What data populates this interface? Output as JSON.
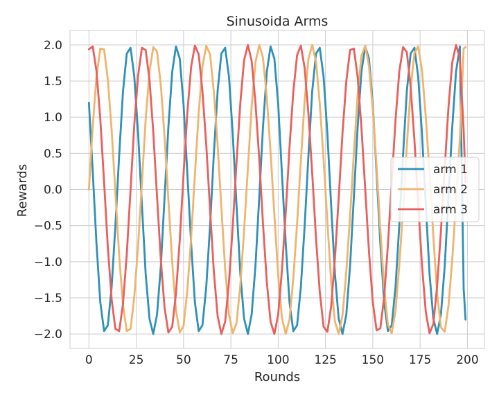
{
  "chart_data": {
    "type": "line",
    "title": "Sinusoida Arms",
    "xlabel": "Rounds",
    "ylabel": "Rewards",
    "xlim": [
      -10,
      209
    ],
    "ylim": [
      -2.2,
      2.2
    ],
    "xticks": [
      0,
      25,
      50,
      75,
      100,
      125,
      150,
      175,
      200
    ],
    "xtick_labels": [
      "0",
      "25",
      "50",
      "75",
      "100",
      "125",
      "150",
      "175",
      "200"
    ],
    "yticks": [
      -2.0,
      -1.5,
      -1.0,
      -0.5,
      0.0,
      0.5,
      1.0,
      1.5,
      2.0
    ],
    "ytick_labels": [
      "−2.0",
      "−1.5",
      "−1.0",
      "−0.5",
      "0.0",
      "0.5",
      "1.0",
      "1.5",
      "2.0"
    ],
    "grid": true,
    "legend_position": "center-right",
    "colors": {
      "background": "#ffffff",
      "grid": "#cccccc",
      "axes_edge": "#cccccc"
    },
    "x": [
      0,
      2,
      4,
      6,
      8,
      10,
      12,
      14,
      16,
      18,
      20,
      22,
      24,
      26,
      28,
      30,
      32,
      34,
      36,
      38,
      40,
      42,
      44,
      46,
      48,
      50,
      52,
      54,
      56,
      58,
      60,
      62,
      64,
      66,
      68,
      70,
      72,
      74,
      76,
      78,
      80,
      82,
      84,
      86,
      88,
      90,
      92,
      94,
      96,
      98,
      100,
      102,
      104,
      106,
      108,
      110,
      112,
      114,
      116,
      118,
      120,
      122,
      124,
      126,
      128,
      130,
      132,
      134,
      136,
      138,
      140,
      142,
      144,
      146,
      148,
      150,
      152,
      154,
      156,
      158,
      160,
      162,
      164,
      166,
      168,
      170,
      172,
      174,
      176,
      178,
      180,
      182,
      184,
      186,
      188,
      190,
      192,
      194,
      196,
      198,
      199
    ],
    "series": [
      {
        "name": "arm 1",
        "color": "#2e91b5",
        "values": [
          1.2,
          0.25,
          -0.75,
          -1.56,
          -1.96,
          -1.88,
          -1.35,
          -0.5,
          0.48,
          1.36,
          1.88,
          1.96,
          1.56,
          0.77,
          -0.22,
          -1.17,
          -1.79,
          -2.0,
          -1.73,
          -1.06,
          -0.1,
          0.87,
          1.63,
          1.98,
          1.81,
          1.18,
          0.22,
          -0.75,
          -1.56,
          -1.96,
          -1.88,
          -1.35,
          -0.5,
          0.48,
          1.36,
          1.88,
          1.96,
          1.56,
          0.77,
          -0.22,
          -1.17,
          -1.79,
          -2.0,
          -1.73,
          -1.06,
          -0.1,
          0.87,
          1.63,
          1.98,
          1.81,
          1.18,
          0.22,
          -0.75,
          -1.56,
          -1.96,
          -1.88,
          -1.35,
          -0.5,
          0.48,
          1.36,
          1.88,
          1.96,
          1.56,
          0.77,
          -0.22,
          -1.17,
          -1.79,
          -2.0,
          -1.73,
          -1.06,
          -0.1,
          0.87,
          1.63,
          1.98,
          1.81,
          1.18,
          0.22,
          -0.75,
          -1.56,
          -1.96,
          -1.88,
          -1.35,
          -0.5,
          0.48,
          1.36,
          1.88,
          1.96,
          1.56,
          0.77,
          -0.22,
          -1.17,
          -1.79,
          -2.0,
          -1.73,
          -1.06,
          -0.1,
          0.87,
          1.63,
          1.98,
          -1.37,
          -1.8
        ]
      },
      {
        "name": "arm 2",
        "color": "#f0b46e",
        "values": [
          0.0,
          0.87,
          1.56,
          1.95,
          1.94,
          1.52,
          0.82,
          -0.05,
          -0.92,
          -1.6,
          -1.96,
          -1.93,
          -1.48,
          -0.77,
          0.1,
          0.97,
          1.63,
          1.97,
          1.91,
          1.44,
          0.72,
          -0.15,
          -1.01,
          -1.67,
          -1.98,
          -1.89,
          -1.4,
          -0.67,
          0.2,
          1.06,
          1.7,
          1.99,
          1.87,
          1.36,
          0.62,
          -0.25,
          -1.1,
          -1.73,
          -1.99,
          -1.85,
          -1.32,
          -0.57,
          0.3,
          1.15,
          1.76,
          2.0,
          1.82,
          1.27,
          0.52,
          -0.35,
          -1.19,
          -1.78,
          -2.0,
          -1.8,
          -1.23,
          -0.47,
          0.4,
          1.23,
          1.81,
          2.0,
          1.77,
          1.19,
          0.42,
          -0.45,
          -1.28,
          -1.83,
          -2.0,
          -1.74,
          -1.14,
          -0.37,
          0.5,
          1.32,
          1.85,
          1.99,
          1.71,
          1.1,
          0.32,
          -0.55,
          -1.36,
          -1.87,
          -1.99,
          -1.68,
          -1.05,
          -0.27,
          0.6,
          1.4,
          1.89,
          1.98,
          1.65,
          1.0,
          0.22,
          -0.65,
          -1.44,
          -1.91,
          -1.97,
          -1.61,
          -0.96,
          -0.17,
          0.7,
          1.95,
          1.97
        ]
      },
      {
        "name": "arm 3",
        "color": "#e8605c",
        "values": [
          1.94,
          1.98,
          1.64,
          0.98,
          0.1,
          -0.8,
          -1.52,
          -1.93,
          -1.96,
          -1.58,
          -0.9,
          0.0,
          0.9,
          1.58,
          1.96,
          1.93,
          1.52,
          0.8,
          -0.1,
          -0.98,
          -1.64,
          -1.98,
          -1.9,
          -1.44,
          -0.7,
          0.2,
          1.06,
          1.7,
          1.99,
          1.87,
          1.36,
          0.62,
          -0.28,
          -1.13,
          -1.75,
          -2.0,
          -1.83,
          -1.28,
          -0.52,
          0.38,
          1.2,
          1.79,
          2.0,
          1.78,
          1.2,
          0.42,
          -0.48,
          -1.28,
          -1.83,
          -2.0,
          -1.73,
          -1.12,
          -0.32,
          0.58,
          1.35,
          1.86,
          1.99,
          1.68,
          1.04,
          0.22,
          -0.68,
          -1.42,
          -1.9,
          -1.97,
          -1.62,
          -0.95,
          -0.12,
          0.78,
          1.5,
          1.93,
          1.95,
          1.55,
          0.86,
          0.0,
          -0.86,
          -1.56,
          -1.95,
          -1.92,
          -1.49,
          -0.77,
          0.1,
          0.96,
          1.63,
          1.97,
          1.9,
          1.42,
          0.68,
          -0.2,
          -1.05,
          -1.7,
          -1.99,
          -1.86,
          -1.34,
          -0.58,
          0.3,
          1.14,
          1.76,
          2.0,
          1.82,
          0.82,
          0.1
        ]
      }
    ]
  }
}
